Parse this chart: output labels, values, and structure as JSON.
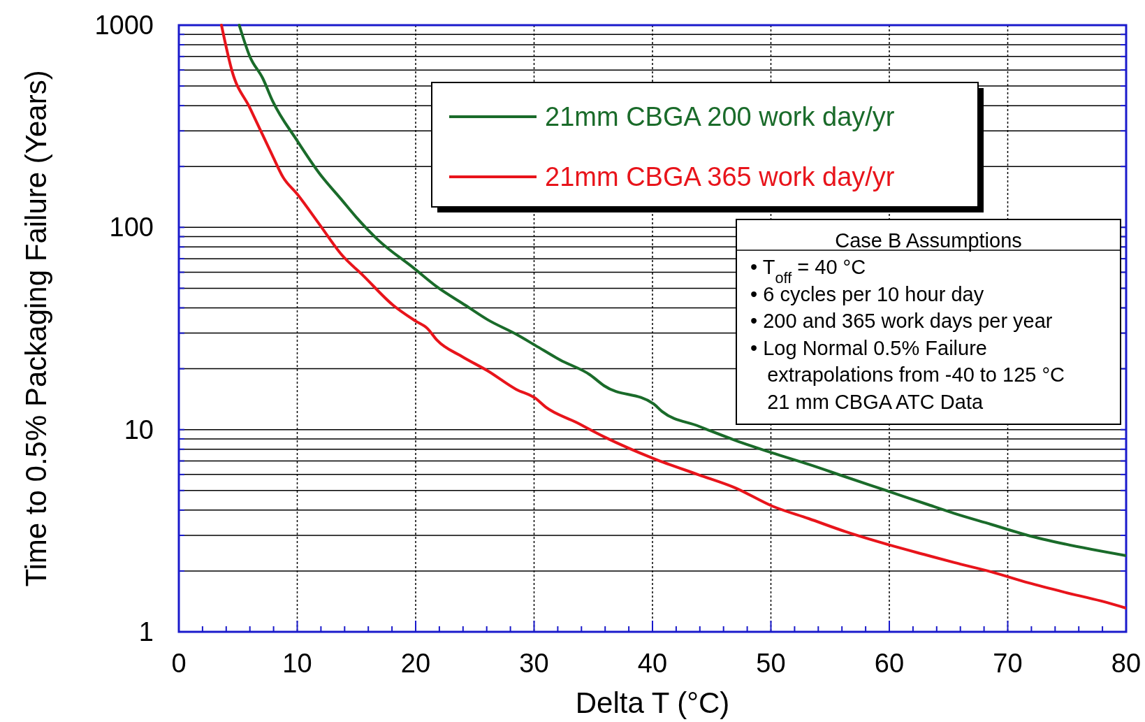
{
  "chart_data": {
    "type": "line",
    "xlabel": "Delta T (°C)",
    "ylabel": "Time to 0.5% Packaging Failure (Years)",
    "log": "y",
    "xlim": [
      0,
      80
    ],
    "xticks": [
      0,
      10,
      20,
      30,
      40,
      50,
      60,
      70,
      80
    ],
    "ylim": [
      1,
      1000
    ],
    "yticks": [
      1,
      10,
      100,
      1000
    ],
    "grid": true,
    "legend": "top",
    "marker": "none",
    "line_style": "solid",
    "series": [
      {
        "name": "21mm CBGA 200 work day/yr",
        "color": "#1a6b2a",
        "x": [
          5.1,
          6.0,
          7.1,
          7.9,
          10.0,
          11.9,
          13.7,
          15.0,
          16.8,
          19.9,
          21.8,
          24.2,
          26.1,
          28.5,
          30.1,
          32.2,
          34.7,
          35.9,
          40.1,
          40.8,
          43.9,
          47.0,
          50.1,
          53.2,
          56.3,
          60.0,
          63.1,
          65.5,
          68.6,
          71.7,
          74.8,
          80
        ],
        "values": [
          1000,
          699,
          544,
          424,
          268,
          184,
          138,
          112,
          87,
          62.5,
          50.8,
          41.2,
          34.9,
          29.6,
          26.1,
          22.1,
          18.7,
          16.5,
          13.4,
          12.3,
          10.4,
          8.85,
          7.68,
          6.73,
          5.84,
          4.94,
          4.29,
          3.85,
          3.4,
          3.0,
          2.72,
          2.38
        ]
      },
      {
        "name": "21mm CBGA 365 work day/yr",
        "color": "#e8141b",
        "x": [
          3.6,
          4.5,
          6.0,
          7.9,
          8.8,
          10.0,
          11.9,
          13.7,
          15.6,
          18.1,
          20.0,
          21.0,
          21.8,
          23.9,
          26.1,
          28.5,
          30.1,
          31.0,
          33.5,
          35.9,
          40.1,
          43.9,
          47.0,
          50.1,
          53.2,
          56.3,
          60.0,
          63.1,
          65.5,
          68.6,
          71.7,
          74.8,
          77.9,
          80
        ],
        "values": [
          1000,
          591,
          390,
          227,
          177,
          146,
          103,
          73.8,
          57.5,
          41.2,
          34.4,
          31.6,
          27.7,
          23.0,
          19.5,
          15.8,
          14.3,
          12.9,
          10.9,
          9.22,
          7.19,
          5.98,
          5.15,
          4.19,
          3.63,
          3.13,
          2.69,
          2.4,
          2.2,
          1.98,
          1.75,
          1.57,
          1.42,
          1.31
        ]
      }
    ],
    "annotations": [
      "Case B Assumptions",
      "• T$_{off}$ = 40 °C",
      "• 6 cycles per 10 hour day",
      "• 200 and 365 work days per year",
      "• Log Normal 0.5% Failure",
      "   extrapolations from -40 to 125 °C",
      "   21 mm CBGA ATC Data"
    ]
  }
}
